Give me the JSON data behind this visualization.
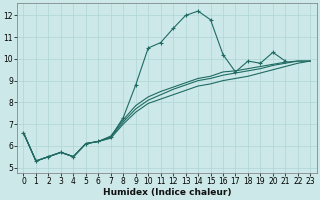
{
  "xlabel": "Humidex (Indice chaleur)",
  "bg_color": "#cce8e8",
  "grid_color": "#afd4d4",
  "line_color": "#1f6b64",
  "xlim": [
    -0.5,
    23.5
  ],
  "ylim": [
    4.75,
    12.55
  ],
  "xticks": [
    0,
    1,
    2,
    3,
    4,
    5,
    6,
    7,
    8,
    9,
    10,
    11,
    12,
    13,
    14,
    15,
    16,
    17,
    18,
    19,
    20,
    21,
    22,
    23
  ],
  "yticks": [
    5,
    6,
    7,
    8,
    9,
    10,
    11,
    12
  ],
  "curve1_x": [
    0,
    1,
    2,
    3,
    4,
    5,
    6,
    7,
    8,
    9,
    10,
    11,
    12,
    13,
    14,
    15,
    16,
    17,
    18,
    19,
    20,
    21
  ],
  "curve1_y": [
    6.6,
    5.3,
    5.5,
    5.7,
    5.5,
    6.1,
    6.2,
    6.4,
    7.3,
    8.8,
    10.5,
    10.75,
    11.4,
    12.0,
    12.2,
    11.8,
    10.2,
    9.4,
    9.9,
    9.8,
    10.3,
    9.9
  ],
  "line2_x": [
    0,
    1,
    2,
    3,
    4,
    5,
    6,
    7,
    8,
    9,
    10,
    11,
    12,
    13,
    14,
    15,
    16,
    17,
    18,
    19,
    20,
    21,
    22,
    23
  ],
  "line2_y": [
    6.6,
    5.3,
    5.5,
    5.7,
    5.5,
    6.1,
    6.2,
    6.35,
    7.0,
    7.55,
    7.95,
    8.15,
    8.35,
    8.55,
    8.75,
    8.85,
    9.0,
    9.1,
    9.2,
    9.35,
    9.5,
    9.65,
    9.8,
    9.9
  ],
  "line3_x": [
    0,
    1,
    2,
    3,
    4,
    5,
    6,
    7,
    8,
    9,
    10,
    11,
    12,
    13,
    14,
    15,
    16,
    17,
    18,
    19,
    20,
    21,
    22,
    23
  ],
  "line3_y": [
    6.6,
    5.3,
    5.5,
    5.7,
    5.5,
    6.1,
    6.2,
    6.4,
    7.1,
    7.7,
    8.1,
    8.35,
    8.6,
    8.8,
    9.0,
    9.1,
    9.25,
    9.35,
    9.45,
    9.55,
    9.7,
    9.8,
    9.9,
    9.9
  ],
  "line4_x": [
    0,
    1,
    2,
    3,
    4,
    5,
    6,
    7,
    8,
    9,
    10,
    11,
    12,
    13,
    14,
    15,
    16,
    17,
    18,
    19,
    20,
    21,
    22,
    23
  ],
  "line4_y": [
    6.6,
    5.3,
    5.5,
    5.7,
    5.5,
    6.1,
    6.2,
    6.45,
    7.2,
    7.85,
    8.25,
    8.5,
    8.7,
    8.9,
    9.1,
    9.2,
    9.4,
    9.45,
    9.55,
    9.65,
    9.75,
    9.85,
    9.9,
    9.9
  ]
}
